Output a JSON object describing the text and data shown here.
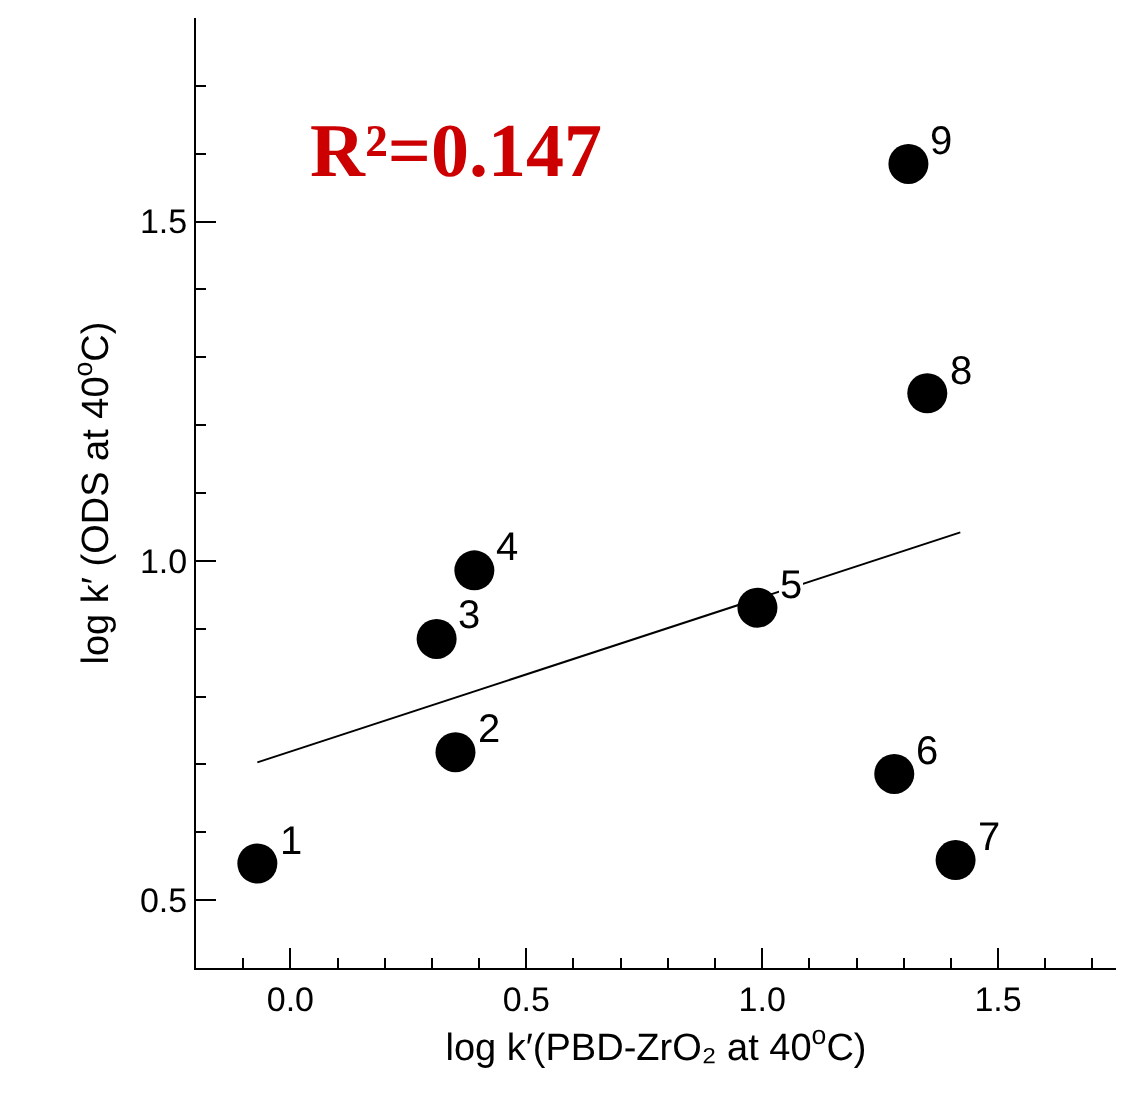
{
  "chart_data": {
    "type": "scatter",
    "xlabel": "log k′(PBD-ZrO₂ at 40$^{o}$C)",
    "ylabel": "log k′ (ODS at 40$^{o}$C)",
    "series": [
      {
        "type": "scatter",
        "color": "#000000",
        "marker": "circle",
        "x": [
          -0.07,
          0.35,
          0.31,
          0.39,
          0.99,
          1.28,
          1.41,
          1.35,
          1.31
        ],
        "values": [
          0.554,
          0.718,
          0.885,
          0.986,
          0.931,
          0.686,
          0.559,
          1.247,
          1.585
        ]
      },
      {
        "type": "line",
        "color": "#000000",
        "marker": "none",
        "line_style": "solid",
        "x": [
          -0.07,
          1.42
        ],
        "values": [
          0.703,
          1.042
        ]
      }
    ],
    "annotations": [
      "R²=0.147",
      {
        "text": "1",
        "x": -0.07,
        "y": 0.554
      },
      {
        "text": "2",
        "x": 0.35,
        "y": 0.718
      },
      {
        "text": "3",
        "x": 0.31,
        "y": 0.885
      },
      {
        "text": "4",
        "x": 0.39,
        "y": 0.986
      },
      {
        "text": "5",
        "x": 0.99,
        "y": 0.931
      },
      {
        "text": "6",
        "x": 1.28,
        "y": 0.686
      },
      {
        "text": "7",
        "x": 1.41,
        "y": 0.559
      },
      {
        "text": "8",
        "x": 1.35,
        "y": 1.247
      },
      {
        "text": "9",
        "x": 1.31,
        "y": 1.585
      }
    ],
    "xlim": [
      -0.2,
      1.75
    ],
    "xticks": [
      {
        "value": 0,
        "label": "0.0"
      },
      0.5,
      {
        "value": 1,
        "label": "1.0"
      },
      1.5
    ],
    "ylim": [
      0.4,
      1.8
    ],
    "yticks": [
      0.5,
      {
        "value": 1,
        "label": "1.0"
      },
      1.5
    ]
  }
}
